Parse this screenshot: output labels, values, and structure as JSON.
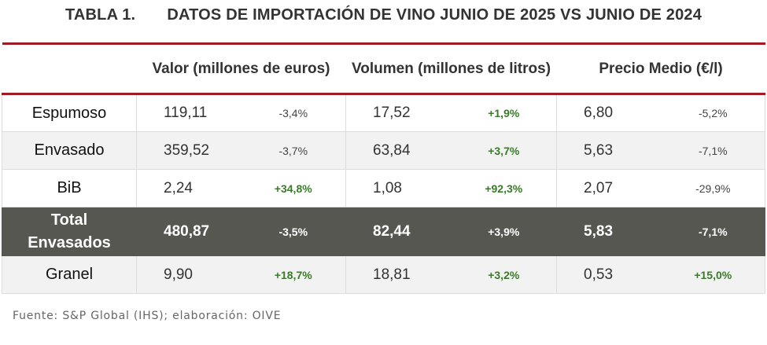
{
  "title": {
    "label": "TABLA 1.",
    "text": "DATOS DE IMPORTACIÓN DE VINO JUNIO DE 2025 VS JUNIO DE 2024"
  },
  "headers": [
    "Valor (millones de euros)",
    "Volumen (millones de litros)",
    "Precio Medio (€/l)"
  ],
  "rows": [
    {
      "label": "Espumoso",
      "valor": "119,11",
      "valor_pct": "-3,4%",
      "vol": "17,52",
      "vol_pct": "+1,9%",
      "precio": "6,80",
      "precio_pct": "-5,2%"
    },
    {
      "label": "Envasado",
      "valor": "359,52",
      "valor_pct": "-3,7%",
      "vol": "63,84",
      "vol_pct": "+3,7%",
      "precio": "5,63",
      "precio_pct": "-7,1%"
    },
    {
      "label": "BiB",
      "valor": "2,24",
      "valor_pct": "+34,8%",
      "vol": "1,08",
      "vol_pct": "+92,3%",
      "precio": "2,07",
      "precio_pct": "-29,9%"
    },
    {
      "label_1": "Total",
      "label_2": "Envasados",
      "valor": "480,87",
      "valor_pct": "-3,5%",
      "vol": "82,44",
      "vol_pct": "+3,9%",
      "precio": "5,83",
      "precio_pct": "-7,1%"
    },
    {
      "label": "Granel",
      "valor": "9,90",
      "valor_pct": "+18,7%",
      "vol": "18,81",
      "vol_pct": "+3,2%",
      "precio": "0,53",
      "precio_pct": "+15,0%"
    }
  ],
  "source": "Fuente: S&P Global (IHS); elaboración: OIVE",
  "colors": {
    "accent": "#a01a24",
    "total_bg": "#575752",
    "positive": "#3a7a2a"
  }
}
